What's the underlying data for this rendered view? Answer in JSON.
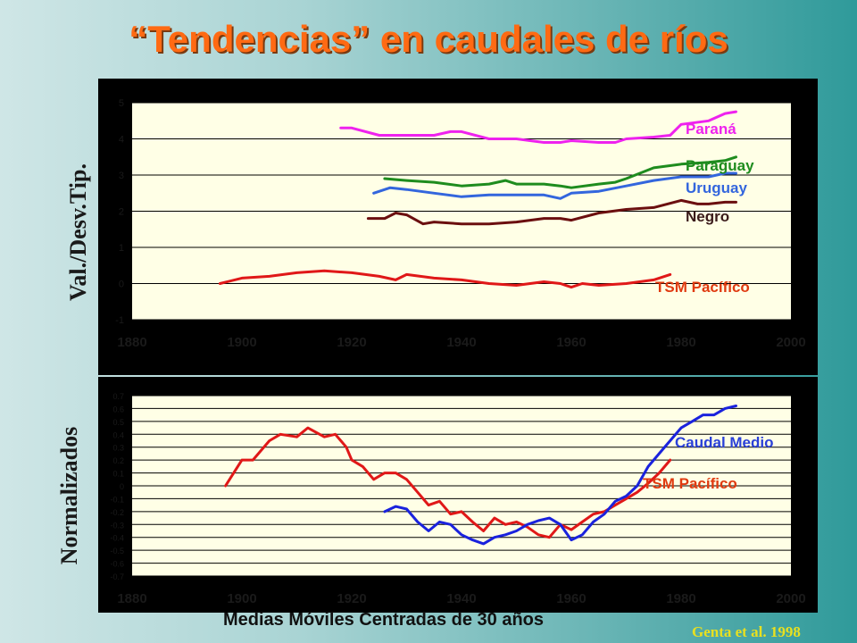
{
  "title": "“Tendencias” en caudales de ríos",
  "credit": "Genta et al. 1998",
  "colors": {
    "parana": "#ee22ee",
    "paraguay": "#1e8c1e",
    "uruguay": "#3366dd",
    "negro": "#6b0f0f",
    "tsm": "#e01818",
    "caudal": "#1a22dd"
  },
  "chart_data": [
    {
      "type": "line",
      "title": "“Tendencias” en caudales de ríos",
      "xlabel": "",
      "ylabel": "Val./Desv.Tip.",
      "xlim": [
        1880,
        2000
      ],
      "ylim": [
        -1,
        5
      ],
      "x_ticks": [
        "1880",
        "1900",
        "1920",
        "1940",
        "1960",
        "1980",
        "2000"
      ],
      "y_ticks": [
        "-1",
        "0",
        "1",
        "2",
        "3",
        "4",
        "5"
      ],
      "grid": true,
      "series": [
        {
          "name": "Paraná",
          "color": "#ee22ee",
          "label_color": "#ee22ee",
          "x": [
            1918,
            1920,
            1925,
            1930,
            1935,
            1938,
            1940,
            1945,
            1948,
            1950,
            1955,
            1958,
            1960,
            1965,
            1968,
            1970,
            1975,
            1978,
            1980,
            1985,
            1988,
            1990
          ],
          "y": [
            4.3,
            4.3,
            4.1,
            4.1,
            4.1,
            4.2,
            4.2,
            4.0,
            4.0,
            4.0,
            3.9,
            3.9,
            3.95,
            3.9,
            3.9,
            4.0,
            4.05,
            4.1,
            4.4,
            4.5,
            4.7,
            4.75
          ]
        },
        {
          "name": "Paraguay",
          "color": "#1e8c1e",
          "label_color": "#1e8c1e",
          "x": [
            1926,
            1930,
            1935,
            1940,
            1945,
            1948,
            1950,
            1955,
            1958,
            1960,
            1965,
            1968,
            1970,
            1975,
            1980,
            1985,
            1988,
            1990
          ],
          "y": [
            2.9,
            2.85,
            2.8,
            2.7,
            2.75,
            2.85,
            2.75,
            2.75,
            2.7,
            2.65,
            2.75,
            2.8,
            2.9,
            3.2,
            3.3,
            3.35,
            3.4,
            3.5
          ]
        },
        {
          "name": "Uruguay",
          "color": "#3366dd",
          "label_color": "#3366dd",
          "x": [
            1924,
            1927,
            1930,
            1935,
            1940,
            1945,
            1950,
            1955,
            1958,
            1960,
            1965,
            1970,
            1975,
            1980,
            1985,
            1988,
            1990
          ],
          "y": [
            2.5,
            2.65,
            2.6,
            2.5,
            2.4,
            2.45,
            2.45,
            2.45,
            2.35,
            2.5,
            2.55,
            2.7,
            2.85,
            2.95,
            2.95,
            3.05,
            3.05
          ]
        },
        {
          "name": "Negro",
          "color": "#6b0f0f",
          "label_color": "#3a1a1a",
          "x": [
            1923,
            1926,
            1928,
            1930,
            1933,
            1935,
            1940,
            1945,
            1950,
            1955,
            1958,
            1960,
            1965,
            1970,
            1975,
            1980,
            1983,
            1985,
            1988,
            1990
          ],
          "y": [
            1.8,
            1.8,
            1.95,
            1.9,
            1.65,
            1.7,
            1.65,
            1.65,
            1.7,
            1.8,
            1.8,
            1.75,
            1.95,
            2.05,
            2.1,
            2.3,
            2.2,
            2.2,
            2.25,
            2.25
          ]
        },
        {
          "name": "TSM Pacífico",
          "color": "#e01818",
          "label_color": "#e03a10",
          "x": [
            1896,
            1900,
            1905,
            1910,
            1915,
            1920,
            1925,
            1928,
            1930,
            1935,
            1940,
            1945,
            1950,
            1955,
            1958,
            1960,
            1962,
            1965,
            1970,
            1975,
            1978
          ],
          "y": [
            0.0,
            0.15,
            0.2,
            0.3,
            0.35,
            0.3,
            0.2,
            0.1,
            0.25,
            0.15,
            0.1,
            0.0,
            -0.05,
            0.05,
            0.0,
            -0.1,
            0.0,
            -0.05,
            0.0,
            0.1,
            0.25
          ]
        }
      ]
    },
    {
      "type": "line",
      "title": "",
      "xlabel": "Medias Móviles Centradas de 30 años",
      "ylabel": "Normalizados",
      "xlim": [
        1880,
        2000
      ],
      "ylim": [
        -0.7,
        0.7
      ],
      "x_ticks": [
        "1880",
        "1900",
        "1920",
        "1940",
        "1960",
        "1980",
        "2000"
      ],
      "y_ticks": [
        "-0.7",
        "-0.6",
        "-0.5",
        "-0.4",
        "-0.3",
        "-0.2",
        "-0.1",
        "0",
        "0.1",
        "0.2",
        "0.3",
        "0.4",
        "0.5",
        "0.6",
        "0.7"
      ],
      "grid": true,
      "series": [
        {
          "name": "TSM Pacífico",
          "color": "#e01818",
          "label_color": "#e03a10",
          "x": [
            1897,
            1900,
            1902,
            1905,
            1907,
            1910,
            1912,
            1915,
            1917,
            1919,
            1920,
            1922,
            1924,
            1926,
            1928,
            1930,
            1932,
            1934,
            1936,
            1938,
            1940,
            1942,
            1944,
            1946,
            1948,
            1950,
            1952,
            1954,
            1956,
            1958,
            1960,
            1962,
            1964,
            1966,
            1968,
            1970,
            1972,
            1974,
            1976,
            1978
          ],
          "y": [
            0.0,
            0.2,
            0.2,
            0.35,
            0.4,
            0.38,
            0.45,
            0.38,
            0.4,
            0.3,
            0.2,
            0.15,
            0.05,
            0.1,
            0.1,
            0.05,
            -0.05,
            -0.15,
            -0.12,
            -0.22,
            -0.2,
            -0.28,
            -0.35,
            -0.25,
            -0.3,
            -0.28,
            -0.32,
            -0.38,
            -0.4,
            -0.3,
            -0.34,
            -0.28,
            -0.22,
            -0.2,
            -0.15,
            -0.1,
            -0.05,
            0.02,
            0.1,
            0.2
          ]
        },
        {
          "name": "Caudal Medio",
          "color": "#1a22dd",
          "label_color": "#2a40d8",
          "x": [
            1926,
            1928,
            1930,
            1932,
            1934,
            1936,
            1938,
            1940,
            1942,
            1944,
            1946,
            1948,
            1950,
            1952,
            1954,
            1956,
            1958,
            1960,
            1962,
            1964,
            1966,
            1968,
            1970,
            1972,
            1974,
            1976,
            1978,
            1980,
            1982,
            1984,
            1986,
            1988,
            1990
          ],
          "y": [
            -0.2,
            -0.16,
            -0.18,
            -0.28,
            -0.35,
            -0.28,
            -0.3,
            -0.38,
            -0.42,
            -0.45,
            -0.4,
            -0.38,
            -0.35,
            -0.3,
            -0.27,
            -0.25,
            -0.3,
            -0.42,
            -0.38,
            -0.28,
            -0.22,
            -0.12,
            -0.08,
            0.0,
            0.15,
            0.25,
            0.35,
            0.45,
            0.5,
            0.55,
            0.55,
            0.6,
            0.62
          ]
        }
      ]
    }
  ]
}
